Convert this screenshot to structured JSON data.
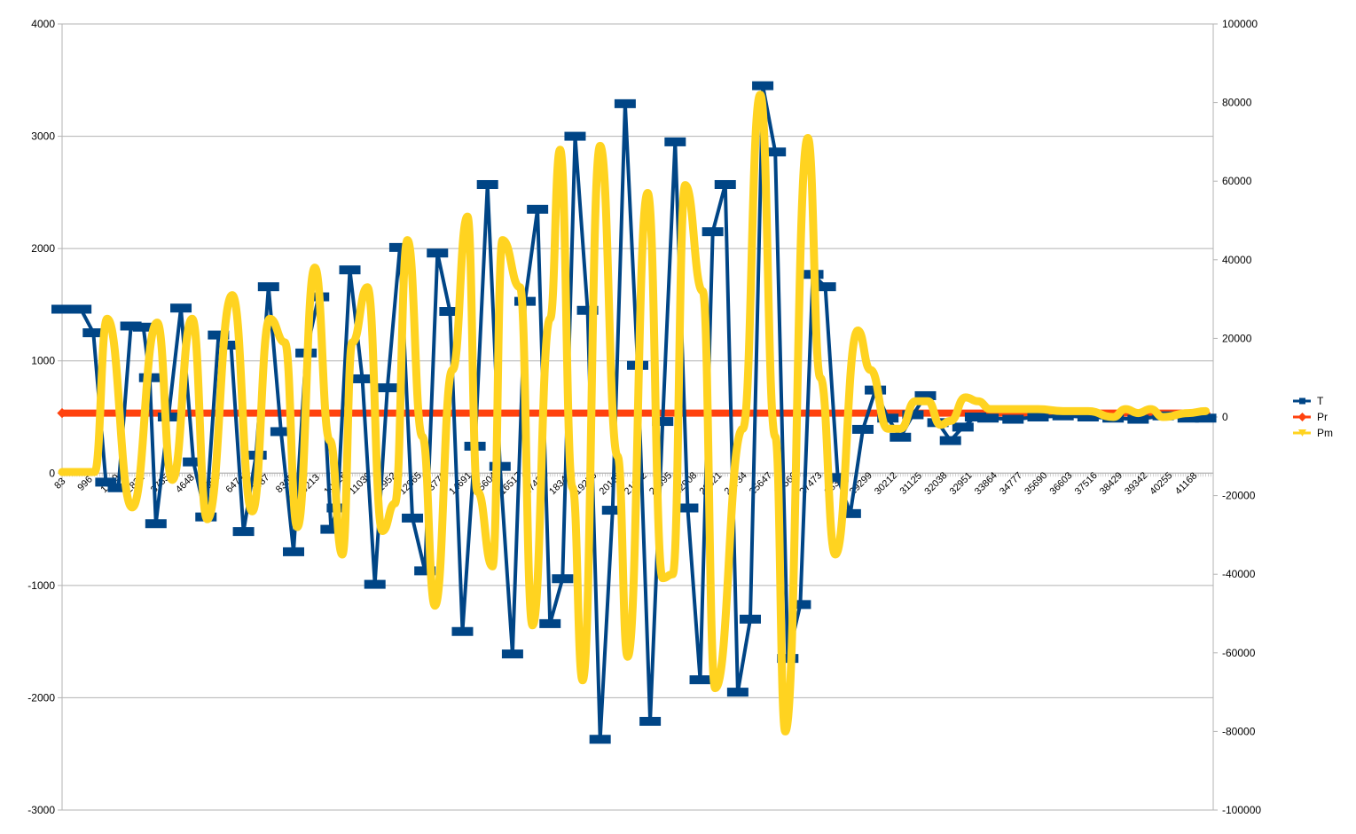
{
  "chart_data": {
    "type": "line",
    "title": "",
    "xlabel": "",
    "ylabel": "",
    "y2label": "",
    "grid": true,
    "legend_position": "right",
    "ylim": [
      -3000,
      4000
    ],
    "y2lim": [
      -100000,
      100000
    ],
    "y_ticks": [
      4000,
      3000,
      2000,
      1000,
      0,
      -1000,
      -2000,
      -3000
    ],
    "y2_ticks": [
      100000,
      80000,
      60000,
      40000,
      20000,
      0,
      -20000,
      -40000,
      -60000,
      -80000,
      -100000
    ],
    "x_tick_labels": [
      "83",
      "996",
      "1909",
      "2822",
      "3735",
      "4648",
      "5561",
      "6474",
      "7387",
      "8300",
      "9213",
      "10126",
      "11039",
      "11952",
      "12865",
      "13778",
      "14691",
      "15604",
      "16517",
      "17430",
      "18343",
      "19256",
      "20169",
      "21082",
      "21995",
      "22908",
      "23821",
      "24734",
      "25647",
      "26560",
      "27473",
      "28386",
      "29299",
      "30212",
      "31125",
      "32038",
      "32951",
      "33864",
      "34777",
      "35690",
      "36603",
      "37516",
      "38429",
      "39342",
      "40255",
      "41168"
    ],
    "colors": {
      "T": "#004586",
      "Pr": "#ff420e",
      "Pm": "#ffd320",
      "grid": "#b3b3b3"
    },
    "series": [
      {
        "name": "T",
        "axis": "left",
        "marker": "square",
        "points": [
          [
            0,
            1460
          ],
          [
            0.75,
            1460
          ],
          [
            1.25,
            1250
          ],
          [
            1.75,
            -80
          ],
          [
            2.25,
            -130
          ],
          [
            2.75,
            1310
          ],
          [
            3.25,
            1300
          ],
          [
            3.5,
            850
          ],
          [
            3.75,
            -450
          ],
          [
            4.25,
            500
          ],
          [
            4.75,
            1470
          ],
          [
            5.25,
            100
          ],
          [
            5.75,
            -390
          ],
          [
            6.25,
            1230
          ],
          [
            6.75,
            1140
          ],
          [
            7.25,
            -520
          ],
          [
            7.75,
            160
          ],
          [
            8.25,
            1660
          ],
          [
            8.75,
            370
          ],
          [
            9.25,
            -700
          ],
          [
            9.75,
            1070
          ],
          [
            10.25,
            1570
          ],
          [
            10.75,
            -500
          ],
          [
            11.0,
            -310
          ],
          [
            11.5,
            1810
          ],
          [
            12.0,
            840
          ],
          [
            12.5,
            -990
          ],
          [
            13.0,
            760
          ],
          [
            13.5,
            2010
          ],
          [
            14.0,
            -400
          ],
          [
            14.5,
            -870
          ],
          [
            15.0,
            1960
          ],
          [
            15.5,
            1440
          ],
          [
            16.0,
            -1410
          ],
          [
            16.5,
            240
          ],
          [
            17.0,
            2570
          ],
          [
            17.5,
            60
          ],
          [
            18.0,
            -1610
          ],
          [
            18.5,
            1530
          ],
          [
            19.0,
            2350
          ],
          [
            19.5,
            -1340
          ],
          [
            20.0,
            -940
          ],
          [
            20.5,
            3000
          ],
          [
            21.0,
            1450
          ],
          [
            21.5,
            -2370
          ],
          [
            22.0,
            -330
          ],
          [
            22.5,
            3290
          ],
          [
            23.0,
            960
          ],
          [
            23.5,
            -2210
          ],
          [
            24.0,
            460
          ],
          [
            24.5,
            2950
          ],
          [
            25.0,
            -310
          ],
          [
            25.5,
            -1840
          ],
          [
            26.0,
            2150
          ],
          [
            26.5,
            2570
          ],
          [
            27.0,
            -1950
          ],
          [
            27.5,
            -1300
          ],
          [
            28.0,
            3450
          ],
          [
            28.5,
            2860
          ],
          [
            29.0,
            -1650
          ],
          [
            29.5,
            -1170
          ],
          [
            30.0,
            1770
          ],
          [
            30.5,
            1660
          ],
          [
            31.0,
            -40
          ],
          [
            31.5,
            -360
          ],
          [
            32.0,
            390
          ],
          [
            32.5,
            740
          ],
          [
            33.0,
            490
          ],
          [
            33.5,
            320
          ],
          [
            34.0,
            520
          ],
          [
            34.5,
            690
          ],
          [
            35.0,
            450
          ],
          [
            35.5,
            290
          ],
          [
            36.0,
            410
          ],
          [
            36.5,
            500
          ],
          [
            37.0,
            490
          ],
          [
            38.0,
            480
          ],
          [
            39.0,
            500
          ],
          [
            40.0,
            510
          ],
          [
            41.0,
            500
          ],
          [
            42.0,
            490
          ],
          [
            43.0,
            480
          ],
          [
            44.0,
            510
          ],
          [
            45.0,
            490
          ],
          [
            45.7,
            490
          ]
        ]
      },
      {
        "name": "Pr",
        "axis": "right",
        "marker": "diamond",
        "points": [
          [
            0,
            1000
          ],
          [
            45.7,
            1000
          ]
        ]
      },
      {
        "name": "Pm",
        "axis": "right",
        "marker": "triangle",
        "points": [
          [
            0,
            -14000
          ],
          [
            1.3,
            -14000
          ],
          [
            1.8,
            25000
          ],
          [
            2.8,
            -23000
          ],
          [
            3.8,
            24000
          ],
          [
            4.4,
            -16000
          ],
          [
            5.2,
            25000
          ],
          [
            5.8,
            -26000
          ],
          [
            6.8,
            31000
          ],
          [
            7.6,
            -24000
          ],
          [
            8.3,
            25000
          ],
          [
            8.9,
            19000
          ],
          [
            9.4,
            -28000
          ],
          [
            10.1,
            38000
          ],
          [
            10.7,
            -6000
          ],
          [
            11.2,
            -35000
          ],
          [
            11.6,
            19000
          ],
          [
            12.2,
            33000
          ],
          [
            12.8,
            -29000
          ],
          [
            13.3,
            -22000
          ],
          [
            13.8,
            45000
          ],
          [
            14.4,
            -5000
          ],
          [
            14.9,
            -48000
          ],
          [
            15.6,
            12000
          ],
          [
            16.2,
            51000
          ],
          [
            16.6,
            -19000
          ],
          [
            17.2,
            -38000
          ],
          [
            17.6,
            45000
          ],
          [
            18.3,
            33000
          ],
          [
            18.8,
            -53000
          ],
          [
            19.5,
            25000
          ],
          [
            19.9,
            68000
          ],
          [
            20.4,
            -18000
          ],
          [
            20.8,
            -67000
          ],
          [
            21.5,
            69000
          ],
          [
            22.2,
            -10000
          ],
          [
            22.6,
            -61000
          ],
          [
            23.4,
            57000
          ],
          [
            24.0,
            -41000
          ],
          [
            24.4,
            -40000
          ],
          [
            24.9,
            59000
          ],
          [
            25.6,
            32000
          ],
          [
            26.1,
            -69000
          ],
          [
            27.2,
            -3000
          ],
          [
            27.9,
            82000
          ],
          [
            28.5,
            -5000
          ],
          [
            28.9,
            -80000
          ],
          [
            29.8,
            71000
          ],
          [
            30.3,
            10000
          ],
          [
            30.9,
            -35000
          ],
          [
            31.8,
            22000
          ],
          [
            32.3,
            12000
          ],
          [
            33.0,
            -3000
          ],
          [
            33.5,
            -3000
          ],
          [
            34.1,
            4000
          ],
          [
            34.6,
            4000
          ],
          [
            35.1,
            -2000
          ],
          [
            35.5,
            -1000
          ],
          [
            36.1,
            5000
          ],
          [
            36.6,
            4000
          ],
          [
            37.1,
            2000
          ],
          [
            37.5,
            2000
          ],
          [
            38.0,
            2000
          ],
          [
            39.0,
            2000
          ],
          [
            40.0,
            1500
          ],
          [
            41.0,
            1500
          ],
          [
            42.0,
            0
          ],
          [
            42.5,
            2000
          ],
          [
            43.0,
            1000
          ],
          [
            43.5,
            2000
          ],
          [
            44.0,
            0
          ],
          [
            45.0,
            1000
          ],
          [
            45.7,
            1500
          ]
        ]
      }
    ]
  }
}
